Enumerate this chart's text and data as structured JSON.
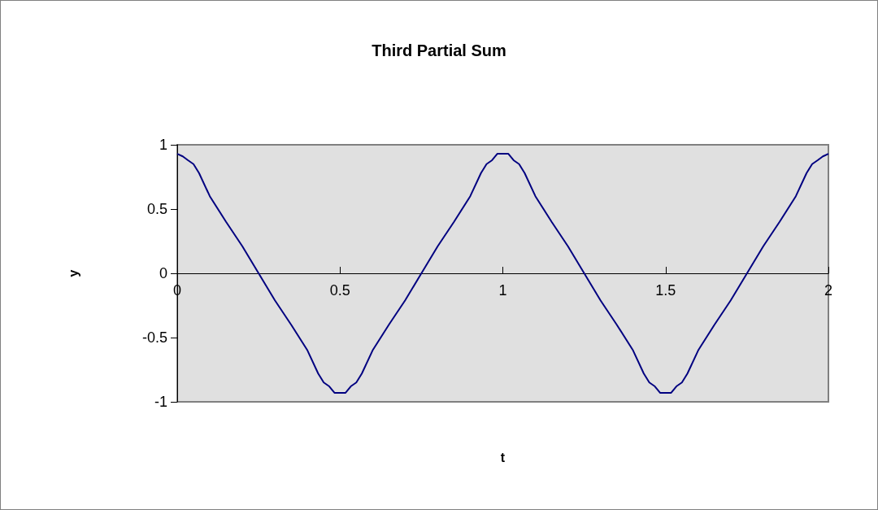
{
  "chart_data": {
    "type": "line",
    "title": "Third Partial Sum",
    "xlabel": "t",
    "ylabel": "y",
    "x": [
      0,
      0.017,
      0.033,
      0.05,
      0.067,
      0.1,
      0.15,
      0.2,
      0.25,
      0.3,
      0.35,
      0.4,
      0.433,
      0.45,
      0.467,
      0.483,
      0.517,
      0.533,
      0.55,
      0.567,
      0.6,
      0.65,
      0.7,
      0.75,
      0.8,
      0.85,
      0.9,
      0.933,
      0.95,
      0.967,
      0.983,
      1.017,
      1.033,
      1.05,
      1.067,
      1.1,
      1.15,
      1.2,
      1.25,
      1.3,
      1.35,
      1.4,
      1.433,
      1.45,
      1.467,
      1.483,
      1.517,
      1.533,
      1.55,
      1.567,
      1.6,
      1.65,
      1.7,
      1.75,
      1.8,
      1.85,
      1.9,
      1.933,
      1.95,
      1.967,
      1.983,
      2
    ],
    "series": [
      {
        "color": "#000080",
        "values": [
          0.93,
          0.91,
          0.88,
          0.85,
          0.78,
          0.6,
          0.4,
          0.21,
          0,
          -0.21,
          -0.4,
          -0.6,
          -0.78,
          -0.85,
          -0.88,
          -0.93,
          -0.93,
          -0.88,
          -0.85,
          -0.78,
          -0.6,
          -0.4,
          -0.21,
          0,
          0.21,
          0.4,
          0.6,
          0.78,
          0.85,
          0.88,
          0.93,
          0.93,
          0.88,
          0.85,
          0.78,
          0.6,
          0.4,
          0.21,
          0,
          -0.21,
          -0.4,
          -0.6,
          -0.78,
          -0.85,
          -0.88,
          -0.93,
          -0.93,
          -0.88,
          -0.85,
          -0.78,
          -0.6,
          -0.4,
          -0.21,
          0,
          0.21,
          0.4,
          0.6,
          0.78,
          0.85,
          0.88,
          0.91,
          0.93
        ]
      }
    ],
    "xlim": [
      0,
      2
    ],
    "xticks": [
      0,
      0.5,
      1,
      1.5,
      2
    ],
    "ylim": [
      -1,
      1
    ],
    "yticks": [
      -1,
      -0.5,
      0,
      0.5,
      1
    ],
    "marker": "none",
    "line_style": "solid"
  }
}
